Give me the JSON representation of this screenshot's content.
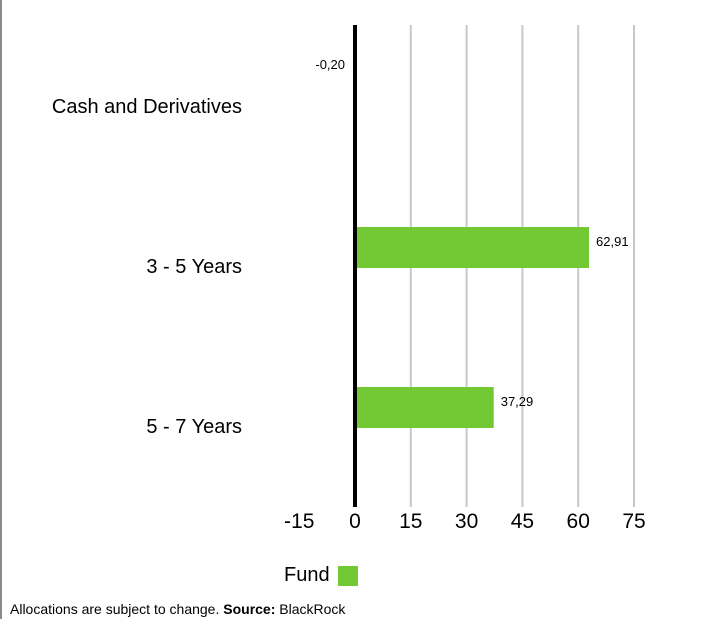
{
  "chart_data": {
    "type": "bar",
    "orientation": "horizontal",
    "categories": [
      "Cash and Derivatives",
      "3 - 5 Years",
      "5 - 7 Years"
    ],
    "series": [
      {
        "name": "Fund",
        "values": [
          -0.2,
          62.91,
          37.29
        ],
        "labels": [
          "-0,20",
          "62,91",
          "37,29"
        ],
        "color": "#73c934"
      }
    ],
    "xlim": [
      -15,
      75
    ],
    "xticks": [
      -15,
      0,
      15,
      30,
      45,
      60,
      75
    ],
    "xtick_labels": [
      "-15",
      "0",
      "15",
      "30",
      "45",
      "60",
      "75"
    ],
    "grid": true,
    "legend_position": "bottom"
  },
  "footnote": {
    "text": "Allocations are subject to change.",
    "source_label": "Source:",
    "source_value": "BlackRock"
  }
}
